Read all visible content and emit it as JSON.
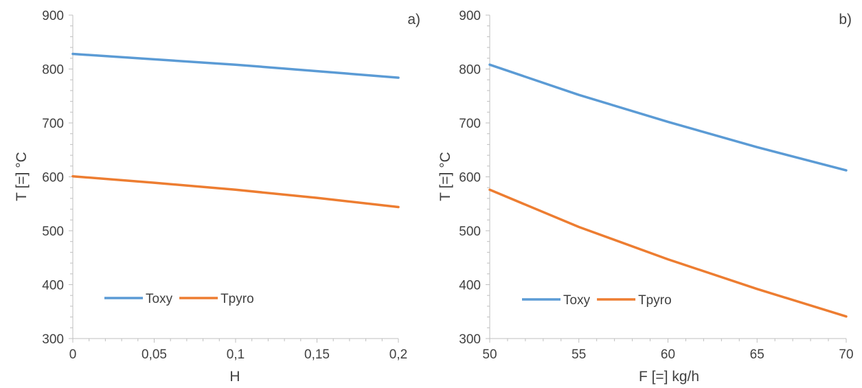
{
  "chart_data": [
    {
      "type": "line",
      "panel_label": "a)",
      "xlabel": "H",
      "ylabel": "T [=] °C",
      "xlim": [
        0,
        0.2
      ],
      "ylim": [
        300,
        900
      ],
      "x_ticks": [
        "0",
        "0,05",
        "0,1",
        "0,15",
        "0,2"
      ],
      "y_ticks": [
        "300",
        "400",
        "500",
        "600",
        "700",
        "800",
        "900"
      ],
      "legend_position": "lower-left",
      "grid": false,
      "x": [
        0,
        0.05,
        0.1,
        0.15,
        0.2
      ],
      "series": [
        {
          "name": "Toxy",
          "color": "#5b9bd5",
          "values": [
            828,
            818,
            808,
            796,
            784
          ]
        },
        {
          "name": "Tpyro",
          "color": "#ed7d31",
          "values": [
            601,
            589,
            576,
            561,
            544
          ]
        }
      ]
    },
    {
      "type": "line",
      "panel_label": "b)",
      "xlabel": "F [=] kg/h",
      "ylabel": "T [=] °C",
      "xlim": [
        50,
        70
      ],
      "ylim": [
        300,
        900
      ],
      "x_ticks": [
        "50",
        "55",
        "60",
        "65",
        "70"
      ],
      "y_ticks": [
        "300",
        "400",
        "500",
        "600",
        "700",
        "800",
        "900"
      ],
      "legend_position": "lower-left",
      "grid": false,
      "x": [
        50,
        55,
        60,
        65,
        70
      ],
      "series": [
        {
          "name": "Toxy",
          "color": "#5b9bd5",
          "values": [
            808,
            752,
            702,
            655,
            612
          ]
        },
        {
          "name": "Tpyro",
          "color": "#ed7d31",
          "values": [
            576,
            507,
            447,
            392,
            341
          ]
        }
      ]
    }
  ]
}
